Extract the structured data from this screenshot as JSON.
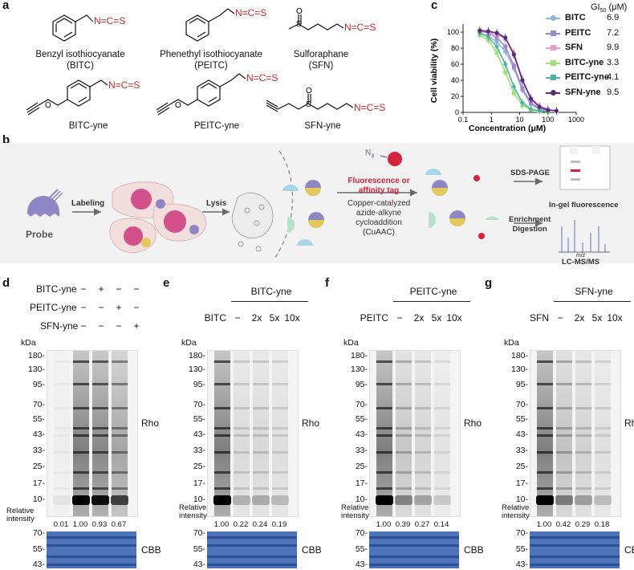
{
  "panels": {
    "a": "a",
    "b": "b",
    "c": "c",
    "d": "d",
    "e": "e",
    "f": "f",
    "g": "g"
  },
  "panel_a": {
    "ncs": "N=C=S",
    "sulfoxide_o": "O",
    "ether_o": "O",
    "s": "S",
    "compounds": [
      {
        "name": "Benzyl isothiocyanate",
        "abbr": "(BITC)"
      },
      {
        "name": "Phenethyl isothiocyanate",
        "abbr": "(PEITC)"
      },
      {
        "name": "Sulforaphane",
        "abbr": "(SFN)"
      },
      {
        "name": "BITC-yne",
        "abbr": ""
      },
      {
        "name": "PEITC-yne",
        "abbr": ""
      },
      {
        "name": "SFN-yne",
        "abbr": ""
      }
    ]
  },
  "panel_b": {
    "probe": "Probe",
    "labeling": "Labeling",
    "lysis": "Lysis",
    "n3": "N",
    "n3_sub": "3",
    "tag_line1": "Fluorescence or",
    "tag_line2": "affinity tag",
    "click_line1": "Copper-catalyzed",
    "click_line2": "azide-alkyne",
    "click_line3": "cycloaddition",
    "click_line4": "(CuAAC)",
    "sds": "SDS-PAGE",
    "ingel": "In-gel fluorescence",
    "enrich1": "Enrichment",
    "enrich2": "Digestion",
    "mz": "m/z",
    "lcms": "LC-MS/MS",
    "colors": {
      "probe": "#8f86c4",
      "tag": "#d4233a",
      "cell": "#f3dede",
      "nucleus": "#d4508a",
      "arrow": "#6a6a6a"
    }
  },
  "panel_c": {
    "gi50_header": "GI",
    "gi50_sub": "50",
    "gi50_unit": " (μM)"
  },
  "chart_data": {
    "type": "line",
    "xlabel": "Concentration (μM)",
    "ylabel": "Cell viability (%)",
    "xscale": "log",
    "xlim": [
      0.1,
      1000
    ],
    "ylim": [
      0,
      110
    ],
    "xticks": [
      0.1,
      1,
      10,
      100,
      1000
    ],
    "xtick_labels": [
      "0.1",
      "1",
      "10",
      "100",
      "1000"
    ],
    "yticks": [
      0,
      20,
      40,
      60,
      80,
      100
    ],
    "ytick_labels": [
      "0",
      "20",
      "40",
      "60",
      "80",
      "100"
    ],
    "legend": "right",
    "series": [
      {
        "name": "BITC",
        "gi50": "6.9",
        "color": "#8fb3db",
        "marker": "circle",
        "x": [
          0.39,
          0.78,
          1.56,
          3.13,
          6.25,
          12.5,
          25,
          50,
          100
        ],
        "y": [
          98,
          95,
          88,
          76,
          55,
          28,
          10,
          4,
          2
        ]
      },
      {
        "name": "PEITC",
        "gi50": "7.2",
        "color": "#9b86d1",
        "marker": "square",
        "x": [
          0.39,
          0.78,
          1.56,
          3.13,
          6.25,
          12.5,
          25,
          50,
          100
        ],
        "y": [
          101,
          99,
          93,
          82,
          58,
          30,
          12,
          5,
          3
        ]
      },
      {
        "name": "SFN",
        "gi50": "9.9",
        "color": "#e3a0cf",
        "marker": "triangle",
        "x": [
          0.39,
          0.78,
          1.56,
          3.13,
          6.25,
          12.5,
          25,
          50,
          100,
          200
        ],
        "y": [
          103,
          100,
          97,
          92,
          75,
          42,
          18,
          8,
          4,
          2
        ]
      },
      {
        "name": "BITC-yne",
        "gi50": "3.3",
        "color": "#9fe07a",
        "marker": "square",
        "x": [
          0.39,
          0.78,
          1.56,
          3.13,
          6.25,
          12.5,
          25,
          50,
          100
        ],
        "y": [
          96,
          90,
          74,
          50,
          24,
          9,
          3,
          2,
          1
        ]
      },
      {
        "name": "PEITC-yne",
        "gi50": "4.1",
        "color": "#4fb3a3",
        "marker": "diamond",
        "x": [
          0.39,
          0.78,
          1.56,
          3.13,
          6.25,
          12.5,
          25,
          50,
          100
        ],
        "y": [
          99,
          94,
          82,
          60,
          32,
          12,
          4,
          2,
          1
        ]
      },
      {
        "name": "SFN-yne",
        "gi50": "9.5",
        "color": "#5a2a7a",
        "marker": "circle",
        "x": [
          0.39,
          0.78,
          1.56,
          3.13,
          6.25,
          12.5,
          25,
          50,
          100,
          200
        ],
        "y": [
          102,
          101,
          99,
          93,
          72,
          40,
          17,
          7,
          3,
          2
        ]
      }
    ]
  },
  "panel_d": {
    "rows": [
      {
        "label": "BITC-yne",
        "signs": [
          "−",
          "+",
          "−",
          "−"
        ]
      },
      {
        "label": "PEITC-yne",
        "signs": [
          "−",
          "−",
          "+",
          "−"
        ]
      },
      {
        "label": "SFN-yne",
        "signs": [
          "−",
          "−",
          "−",
          "+"
        ]
      }
    ],
    "ri": [
      "0.01",
      "1.00",
      "0.93",
      "0.67"
    ]
  },
  "panel_e": {
    "title": "BITC-yne",
    "comp": "BITC",
    "lanes": [
      "−",
      "2x",
      "5x",
      "10x"
    ],
    "ri": [
      "1.00",
      "0.22",
      "0.24",
      "0.19"
    ]
  },
  "panel_f": {
    "title": "PEITC-yne",
    "comp": "PEITC",
    "lanes": [
      "−",
      "2x",
      "5x",
      "10x"
    ],
    "ri": [
      "1.00",
      "0.39",
      "0.27",
      "0.14"
    ]
  },
  "panel_g": {
    "title": "SFN-yne",
    "comp": "SFN",
    "lanes": [
      "−",
      "2x",
      "5x",
      "10x"
    ],
    "ri": [
      "1.00",
      "0.42",
      "0.29",
      "0.18"
    ]
  },
  "gels": {
    "kda": "kDa",
    "markers": [
      "180-",
      "130-",
      "95-",
      "70-",
      "55-",
      "43-",
      "33-",
      "25-",
      "17-",
      "10-"
    ],
    "cbb_markers": [
      "70-",
      "55-",
      "43-"
    ],
    "rho": "Rho",
    "cbb": "CBB",
    "ri_line1": "Relative",
    "ri_line2": "intensity"
  }
}
